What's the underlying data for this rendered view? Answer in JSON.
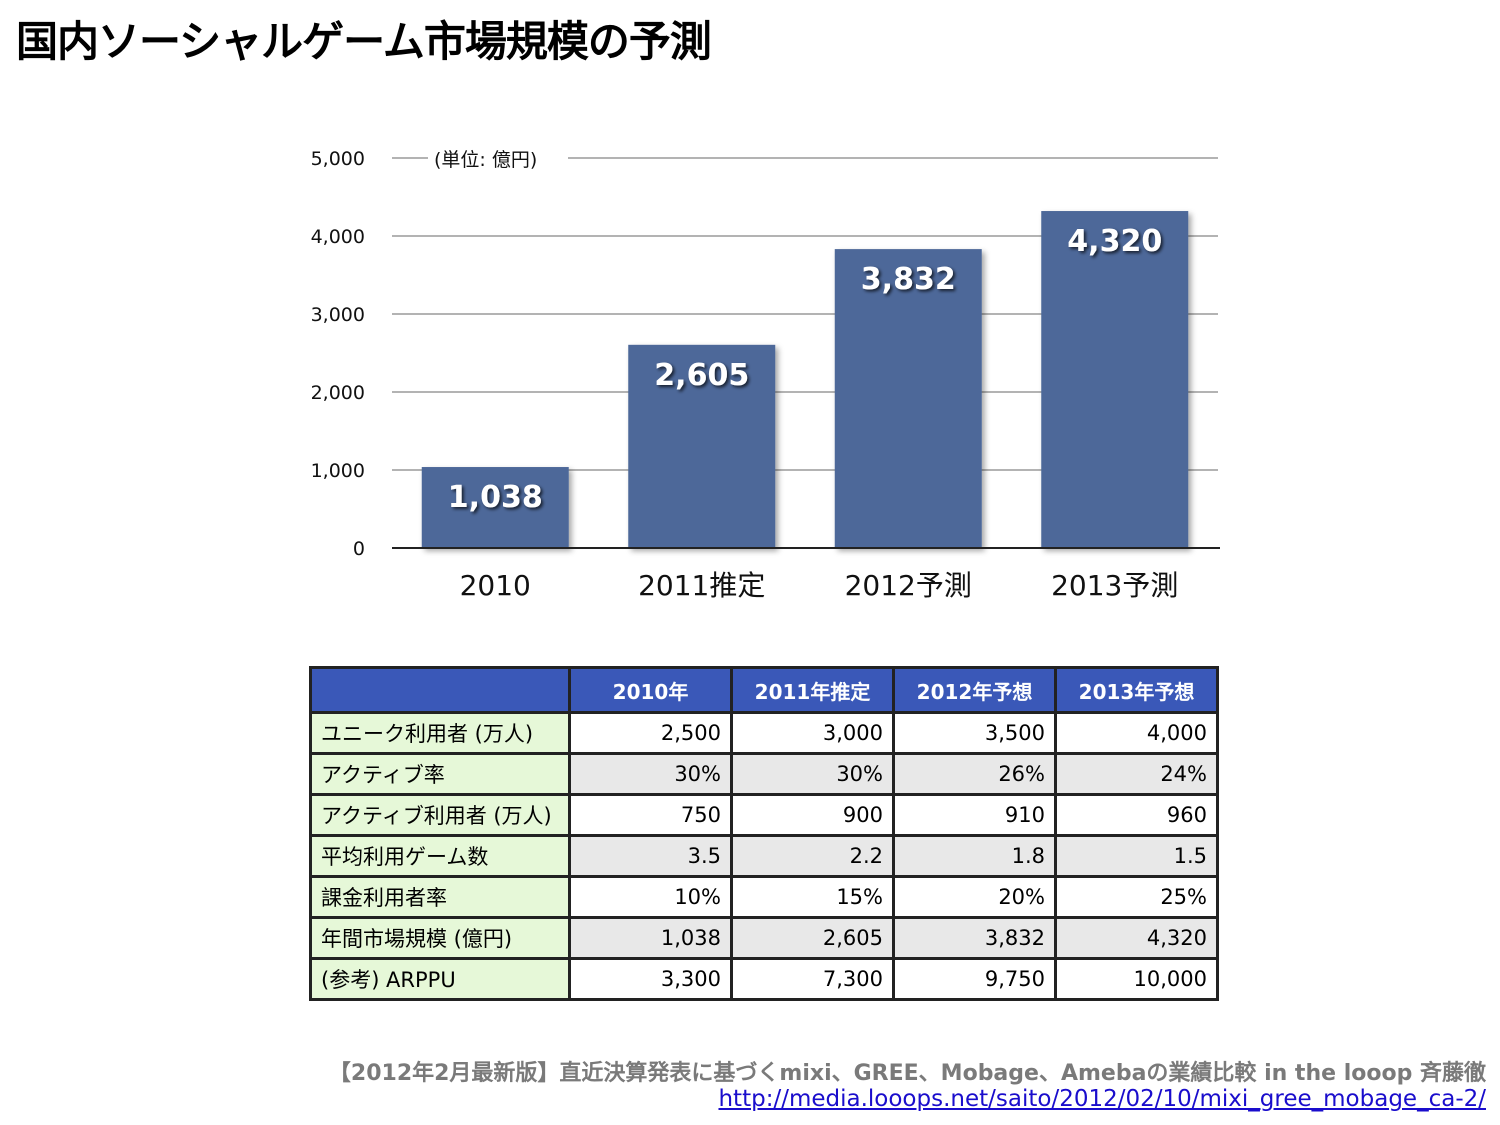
{
  "title": "国内ソーシャルゲーム市場規模の予測",
  "chart_data": {
    "type": "bar",
    "categories": [
      "2010",
      "2011推定",
      "2012予測",
      "2013予測"
    ],
    "values": [
      1038,
      2605,
      3832,
      4320
    ],
    "value_labels": [
      "1,038",
      "2,605",
      "3,832",
      "4,320"
    ],
    "unit_note": "(単位: 億円)",
    "ylim": [
      0,
      5000
    ],
    "yticks": [
      0,
      1000,
      2000,
      3000,
      4000,
      5000
    ],
    "ytick_labels": [
      "0",
      "1,000",
      "2,000",
      "3,000",
      "4,000",
      "5,000"
    ],
    "grid": true,
    "bar_color": "#4d6899",
    "title": "",
    "xlabel": "",
    "ylabel": ""
  },
  "table": {
    "headers": [
      "",
      "2010年",
      "2011年推定",
      "2012年予想",
      "2013年予想"
    ],
    "rows": [
      {
        "label": "ユニーク利用者 (万人)",
        "values": [
          "2,500",
          "3,000",
          "3,500",
          "4,000"
        ]
      },
      {
        "label": "アクティブ率",
        "values": [
          "30%",
          "30%",
          "26%",
          "24%"
        ]
      },
      {
        "label": "アクティブ利用者 (万人)",
        "values": [
          "750",
          "900",
          "910",
          "960"
        ]
      },
      {
        "label": "平均利用ゲーム数",
        "values": [
          "3.5",
          "2.2",
          "1.8",
          "1.5"
        ]
      },
      {
        "label": "課金利用者率",
        "values": [
          "10%",
          "15%",
          "20%",
          "25%"
        ]
      },
      {
        "label": "年間市場規模 (億円)",
        "values": [
          "1,038",
          "2,605",
          "3,832",
          "4,320"
        ]
      },
      {
        "label": "(参考) ARPPU",
        "values": [
          "3,300",
          "7,300",
          "9,750",
          "10,000"
        ]
      }
    ],
    "header_color": "#3a58b8",
    "rowhead_color": "#e6f8d8"
  },
  "source": {
    "text": "【2012年2月最新版】直近決算発表に基づくmixi、GREE、Mobage、Amebaの業績比較 in the looop 斉藤徹",
    "url": "http://media.looops.net/saito/2012/02/10/mixi_gree_mobage_ca-2/"
  }
}
